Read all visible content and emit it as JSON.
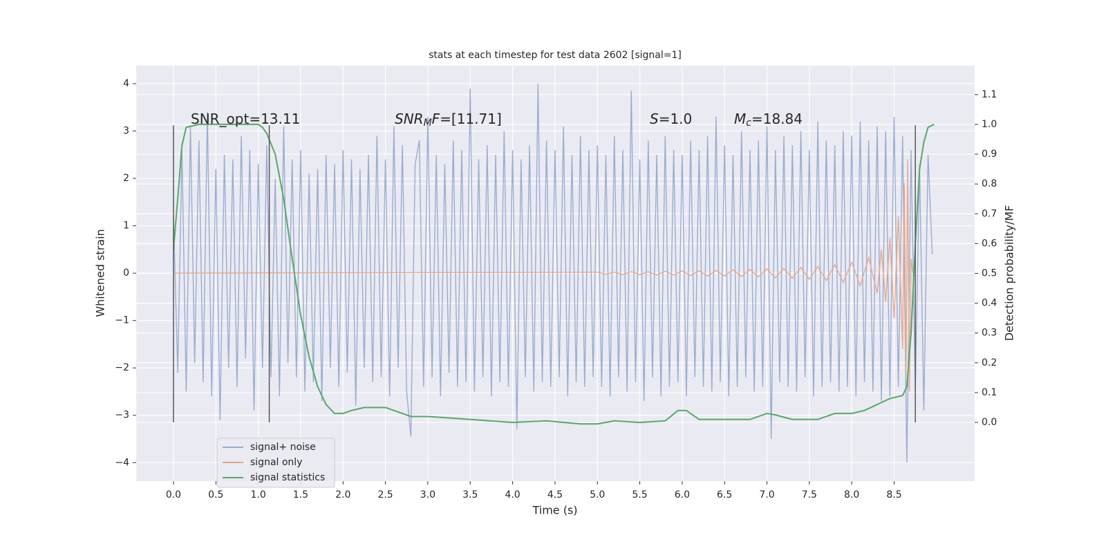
{
  "chart_data": {
    "type": "line",
    "title": "stats at each timestep for test data 2602 [signal=1]",
    "xlabel": "Time (s)",
    "ylabel": "Whitened strain",
    "y2label": "Detection probability/MF",
    "xlim": [
      -0.44,
      9.45
    ],
    "ylim": [
      -4.39,
      4.38
    ],
    "y2lim": [
      -0.197,
      1.197
    ],
    "xticks": [
      {
        "value": 0,
        "label": "0.0"
      },
      0.5,
      {
        "value": 1,
        "label": "1.0"
      },
      1.5,
      {
        "value": 2,
        "label": "2.0"
      },
      2.5,
      {
        "value": 3,
        "label": "3.0"
      },
      3.5,
      {
        "value": 4,
        "label": "4.0"
      },
      4.5,
      {
        "value": 5,
        "label": "5.0"
      },
      5.5,
      {
        "value": 6,
        "label": "6.0"
      },
      6.5,
      {
        "value": 7,
        "label": "7.0"
      },
      7.5,
      {
        "value": 8,
        "label": "8.0"
      },
      8.5
    ],
    "yticks": [
      {
        "value": -4,
        "label": "−4"
      },
      {
        "value": -3,
        "label": "−3"
      },
      {
        "value": -2,
        "label": "−2"
      },
      {
        "value": -1,
        "label": "−1"
      },
      0,
      1,
      2,
      3,
      4
    ],
    "y2ticks": [
      {
        "value": 0,
        "label": "0.0"
      },
      0.1,
      0.2,
      0.3,
      0.4,
      0.5,
      0.6,
      0.7,
      0.8,
      0.9,
      {
        "value": 1,
        "label": "1.0"
      },
      1.1
    ],
    "grid": true,
    "legend": "lower left",
    "vlines": {
      "x": [
        0,
        1.13,
        8.75
      ],
      "ymin": -3.15,
      "ymax": 3.12,
      "color": "#555555"
    },
    "annotations": [
      {
        "parts": [
          {
            "text": "SNR_opt=13.11",
            "style": "normal"
          }
        ]
      },
      {
        "parts": [
          {
            "text": "SNR",
            "style": "italic"
          },
          {
            "text": "M",
            "style": "sub"
          },
          {
            "text": "F",
            "style": "italic"
          },
          {
            "text": "=[11.71]",
            "style": "normal"
          }
        ]
      },
      {
        "parts": [
          {
            "text": "S",
            "style": "italic"
          },
          {
            "text": "=1.0",
            "style": "normal"
          }
        ]
      },
      {
        "parts": [
          {
            "text": "M",
            "style": "italic"
          },
          {
            "text": "c",
            "style": "sub"
          },
          {
            "text": "=18.84",
            "style": "normal"
          }
        ]
      }
    ],
    "series": [
      {
        "name": "signal+ noise",
        "color": "#9aacd0",
        "x": [
          0,
          0.05,
          0.1,
          0.15,
          0.2,
          0.25,
          0.3,
          0.35,
          0.4,
          0.45,
          0.5,
          0.55,
          0.6,
          0.65,
          0.7,
          0.75,
          0.8,
          0.85,
          0.9,
          0.95,
          1,
          1.05,
          1.1,
          1.15,
          1.2,
          1.25,
          1.3,
          1.35,
          1.4,
          1.45,
          1.5,
          1.55,
          1.6,
          1.65,
          1.7,
          1.75,
          1.8,
          1.85,
          1.9,
          1.95,
          2,
          2.05,
          2.1,
          2.15,
          2.2,
          2.25,
          2.3,
          2.35,
          2.4,
          2.45,
          2.5,
          2.55,
          2.6,
          2.65,
          2.7,
          2.75,
          2.8,
          2.85,
          2.9,
          2.95,
          3,
          3.05,
          3.1,
          3.15,
          3.2,
          3.25,
          3.3,
          3.35,
          3.4,
          3.45,
          3.5,
          3.55,
          3.6,
          3.65,
          3.7,
          3.75,
          3.8,
          3.85,
          3.9,
          3.95,
          4,
          4.05,
          4.1,
          4.15,
          4.2,
          4.25,
          4.3,
          4.35,
          4.4,
          4.45,
          4.5,
          4.55,
          4.6,
          4.65,
          4.7,
          4.75,
          4.8,
          4.85,
          4.9,
          4.95,
          5,
          5.05,
          5.1,
          5.15,
          5.2,
          5.25,
          5.3,
          5.35,
          5.4,
          5.45,
          5.5,
          5.55,
          5.6,
          5.65,
          5.7,
          5.75,
          5.8,
          5.85,
          5.9,
          5.95,
          6,
          6.05,
          6.1,
          6.15,
          6.2,
          6.25,
          6.3,
          6.35,
          6.4,
          6.45,
          6.5,
          6.55,
          6.6,
          6.65,
          6.7,
          6.75,
          6.8,
          6.85,
          6.9,
          6.95,
          7,
          7.05,
          7.1,
          7.15,
          7.2,
          7.25,
          7.3,
          7.35,
          7.4,
          7.45,
          7.5,
          7.55,
          7.6,
          7.65,
          7.7,
          7.75,
          7.8,
          7.85,
          7.9,
          7.95,
          8,
          8.05,
          8.1,
          8.15,
          8.2,
          8.25,
          8.3,
          8.35,
          8.4,
          8.45,
          8.5,
          8.55,
          8.6,
          8.65,
          8.7,
          8.75,
          8.8,
          8.85,
          8.9,
          8.95
        ],
        "values": [
          1.2,
          -2.1,
          2.6,
          -2.5,
          3.1,
          -1.9,
          2.8,
          -2.3,
          3.4,
          -2.6,
          2.2,
          -3.1,
          2.5,
          -2.0,
          2.4,
          -2.4,
          2.9,
          -1.8,
          2.6,
          -2.9,
          2.3,
          -2.0,
          2.7,
          -2.2,
          2.0,
          -2.6,
          3.1,
          -1.9,
          2.4,
          -2.2,
          2.6,
          -2.5,
          2.1,
          -2.3,
          2.2,
          -2.7,
          2.5,
          -2.0,
          2.3,
          -2.4,
          2.6,
          -2.1,
          2.4,
          -2.8,
          2.2,
          -2.0,
          2.5,
          -2.3,
          2.9,
          -2.2,
          2.4,
          -2.6,
          3.1,
          -2.0,
          2.7,
          -2.5,
          -3.45,
          2.3,
          2.8,
          -2.4,
          3.3,
          -2.2,
          2.5,
          -2.6,
          2.3,
          -2.1,
          2.8,
          -2.4,
          2.6,
          -2.3,
          3.9,
          -2.5,
          2.4,
          -2.2,
          2.7,
          -2.6,
          2.5,
          -2.3,
          3.0,
          -2.4,
          2.6,
          -3.3,
          2.4,
          -2.2,
          2.7,
          -2.5,
          4.0,
          -2.3,
          2.8,
          -2.4,
          2.6,
          -2.2,
          3.1,
          -2.6,
          2.5,
          -2.3,
          2.9,
          -2.4,
          2.6,
          -2.2,
          2.7,
          -2.4,
          2.5,
          -2.6,
          2.9,
          -2.2,
          2.6,
          -2.5,
          3.85,
          -2.3,
          2.4,
          -2.7,
          2.8,
          -2.2,
          2.5,
          -2.6,
          2.9,
          -2.4,
          2.6,
          -2.3,
          2.5,
          -2.6,
          2.8,
          -2.2,
          2.6,
          -2.4,
          2.9,
          -2.5,
          3.3,
          -2.3,
          2.7,
          -2.6,
          2.5,
          -2.4,
          3.0,
          -2.2,
          2.6,
          -2.5,
          2.8,
          -2.4,
          3.1,
          -3.5,
          2.6,
          -2.3,
          2.9,
          -2.4,
          2.7,
          -2.5,
          3.0,
          -2.2,
          2.6,
          -2.6,
          3.2,
          -2.4,
          2.8,
          -2.3,
          2.7,
          -2.5,
          3.0,
          -2.4,
          2.9,
          -2.6,
          3.2,
          -2.3,
          2.8,
          -2.5,
          3.1,
          -2.7,
          3.0,
          -2.6,
          3.3,
          -2.4,
          2.9,
          -4.0,
          2.6,
          -2.5,
          2.3,
          -2.9,
          2.5,
          0.4
        ]
      },
      {
        "name": "signal only",
        "color": "#e6a88a",
        "x": [
          0,
          5.0,
          5.1,
          5.2,
          5.3,
          5.4,
          5.5,
          5.6,
          5.7,
          5.8,
          5.9,
          6.0,
          6.1,
          6.2,
          6.3,
          6.4,
          6.5,
          6.6,
          6.7,
          6.8,
          6.9,
          7.0,
          7.1,
          7.2,
          7.3,
          7.4,
          7.5,
          7.6,
          7.7,
          7.8,
          7.9,
          8.0,
          8.1,
          8.2,
          8.3,
          8.35,
          8.4,
          8.45,
          8.5,
          8.55,
          8.6,
          8.62,
          8.64,
          8.66,
          8.68,
          8.7,
          8.72
        ],
        "values": [
          0,
          0.02,
          -0.02,
          0.02,
          -0.03,
          0.03,
          -0.03,
          0.03,
          -0.04,
          0.04,
          -0.04,
          0.05,
          -0.05,
          0.05,
          -0.06,
          0.06,
          -0.06,
          0.07,
          -0.07,
          0.08,
          -0.08,
          0.09,
          -0.1,
          0.1,
          -0.11,
          0.12,
          -0.13,
          0.14,
          -0.16,
          0.18,
          -0.2,
          0.23,
          -0.27,
          0.33,
          -0.42,
          0.5,
          -0.6,
          0.75,
          -0.95,
          1.2,
          -1.6,
          1.9,
          -2.2,
          2.4,
          -2.5,
          0.3,
          0
        ]
      },
      {
        "name": "signal statistics",
        "color": "#55a868",
        "axis": "y2",
        "x": [
          0,
          0.05,
          0.1,
          0.15,
          0.3,
          1.0,
          1.05,
          1.1,
          1.2,
          1.3,
          1.4,
          1.5,
          1.6,
          1.7,
          1.8,
          1.9,
          2.0,
          2.1,
          2.25,
          2.5,
          2.6,
          2.8,
          3.0,
          3.5,
          4.0,
          4.4,
          4.8,
          5.0,
          5.2,
          5.5,
          5.8,
          5.95,
          6.05,
          6.2,
          6.5,
          6.8,
          7.0,
          7.1,
          7.3,
          7.6,
          7.8,
          8.0,
          8.15,
          8.3,
          8.45,
          8.6,
          8.65,
          8.7,
          8.75,
          8.8,
          8.85,
          8.9,
          8.97
        ],
        "values": [
          0.58,
          0.75,
          0.93,
          0.99,
          1.0,
          1.0,
          0.99,
          0.97,
          0.9,
          0.75,
          0.55,
          0.36,
          0.22,
          0.12,
          0.06,
          0.03,
          0.03,
          0.04,
          0.05,
          0.05,
          0.04,
          0.02,
          0.02,
          0.01,
          0.0,
          0.005,
          -0.005,
          -0.005,
          0.005,
          0.0,
          0.005,
          0.04,
          0.04,
          0.01,
          0.01,
          0.01,
          0.03,
          0.025,
          0.01,
          0.01,
          0.03,
          0.03,
          0.04,
          0.06,
          0.08,
          0.09,
          0.12,
          0.3,
          0.6,
          0.85,
          0.94,
          0.99,
          1.0
        ]
      }
    ]
  }
}
